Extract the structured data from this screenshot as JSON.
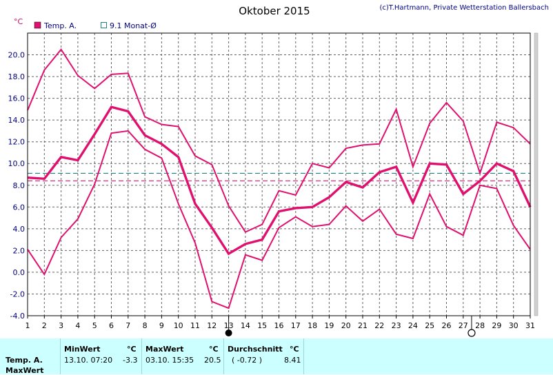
{
  "header": {
    "title": "Oktober 2015",
    "credit": "(c)T.Hartmann, Private Wetterstation Ballersbach"
  },
  "legend": {
    "temp_label": "Temp. A.",
    "avg_label": "9.1 Monat-Ø",
    "unit": "°C"
  },
  "colors": {
    "temp": "#e0106e",
    "monthly_avg": "#208080",
    "background": "#ffffff",
    "stats_background": "#ccffff"
  },
  "markers": {
    "new_moon_day": 13,
    "full_moon_day": 27.5
  },
  "chart_data": {
    "type": "line",
    "title": "Oktober 2015",
    "ylabel": "°C",
    "ylim": [
      -4,
      22
    ],
    "yticks": [
      "-4.0",
      "-2.0",
      "0.0",
      "2.0",
      "4.0",
      "6.0",
      "8.0",
      "10.0",
      "12.0",
      "14.0",
      "16.0",
      "18.0",
      "20.0"
    ],
    "x": [
      1,
      2,
      3,
      4,
      5,
      6,
      7,
      8,
      9,
      10,
      11,
      12,
      13,
      14,
      15,
      16,
      17,
      18,
      19,
      20,
      21,
      22,
      23,
      24,
      25,
      26,
      27,
      28,
      29,
      30,
      31
    ],
    "grid": true,
    "series": [
      {
        "name": "Temp. A.",
        "role": "max",
        "values": [
          14.9,
          18.6,
          20.5,
          18.1,
          16.9,
          18.2,
          18.3,
          14.3,
          13.6,
          13.4,
          10.7,
          9.9,
          6.1,
          3.7,
          4.4,
          7.5,
          7.1,
          10.0,
          9.6,
          11.4,
          11.7,
          11.8,
          15.0,
          9.7,
          13.7,
          15.6,
          13.9,
          9.1,
          13.8,
          13.3,
          11.8
        ]
      },
      {
        "name": "Temp. A.",
        "role": "mean",
        "values": [
          8.7,
          8.6,
          10.6,
          10.3,
          12.7,
          15.2,
          14.8,
          12.6,
          11.8,
          10.6,
          6.3,
          4.1,
          1.7,
          2.6,
          3.0,
          5.6,
          5.9,
          6.0,
          6.9,
          8.3,
          7.8,
          9.2,
          9.7,
          6.4,
          10.0,
          9.9,
          7.2,
          8.4,
          10.0,
          9.3,
          6.0
        ]
      },
      {
        "name": "Temp. A.",
        "role": "min",
        "values": [
          2.1,
          -0.2,
          3.2,
          4.9,
          8.1,
          12.8,
          13.0,
          11.3,
          10.5,
          6.3,
          2.7,
          -2.7,
          -3.3,
          1.6,
          1.1,
          4.1,
          5.1,
          4.2,
          4.4,
          6.1,
          4.7,
          5.8,
          3.5,
          3.1,
          7.2,
          4.2,
          3.4,
          8.0,
          7.7,
          4.3,
          2.1
        ]
      }
    ],
    "reference_lines": [
      {
        "name": "9.1 Monat-Ø",
        "value": 9.1,
        "color": "#208080"
      },
      {
        "name": "Temp. A. Ø",
        "value": 8.41,
        "color": "#e0106e"
      }
    ]
  },
  "stats": {
    "row_label_1": "Temp. A.",
    "row_label_2": "MaxWert",
    "min": {
      "header": "MinWert",
      "unit": "°C",
      "datetime": "13.10.  07:20",
      "value": "-3.3"
    },
    "max": {
      "header": "MaxWert",
      "unit": "°C",
      "datetime": "03.10.  15:35",
      "value": "20.5"
    },
    "avg": {
      "header": "Durchschnitt",
      "unit": "°C",
      "deviation": "( -0.72 )",
      "value": "8.41"
    }
  }
}
